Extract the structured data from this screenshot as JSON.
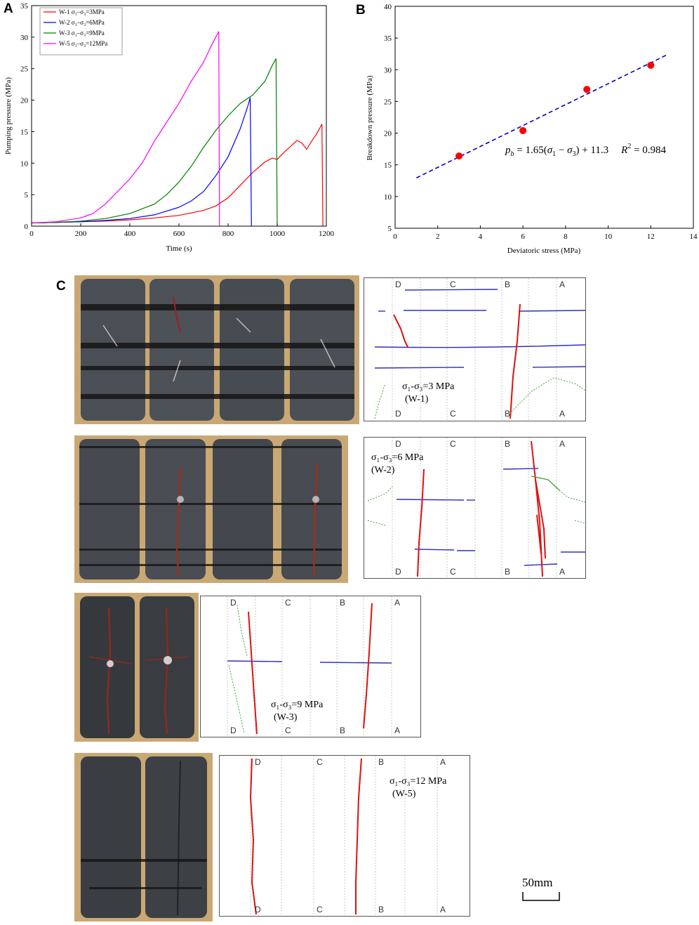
{
  "panels": {
    "a": "A",
    "b": "B",
    "c": "C"
  },
  "chart_data": [
    {
      "type": "line",
      "xlabel": "Time (s)",
      "ylabel": "Pumping pressure (MPa)",
      "xlim": [
        0,
        1200
      ],
      "ylim": [
        0,
        35
      ],
      "xticks": [
        "0",
        "200",
        "400",
        "600",
        "800",
        "1000",
        "1200"
      ],
      "yticks": [
        "0",
        "5",
        "10",
        "15",
        "20",
        "25",
        "30",
        "35"
      ],
      "legend_position": "top-left",
      "series": [
        {
          "name": "W-1  σ₁–σ₃=3MPa",
          "color": "#ff0000",
          "x": [
            0,
            100,
            200,
            300,
            400,
            500,
            600,
            700,
            750,
            800,
            850,
            900,
            950,
            980,
            1000,
            1030,
            1050,
            1080,
            1100,
            1120,
            1140,
            1160,
            1182,
            1186
          ],
          "y": [
            0.5,
            0.6,
            0.7,
            0.8,
            1.0,
            1.3,
            1.7,
            2.5,
            3.2,
            4.5,
            6.5,
            8.5,
            10.2,
            10.8,
            10.6,
            11.8,
            12.5,
            13.6,
            13.2,
            12.2,
            13.5,
            14.6,
            16.2,
            0
          ]
        },
        {
          "name": "W-2  σ₁–σ₃=6MPa",
          "color": "#0000ff",
          "x": [
            0,
            100,
            200,
            300,
            400,
            500,
            600,
            650,
            700,
            750,
            800,
            850,
            880,
            890,
            895
          ],
          "y": [
            0.5,
            0.6,
            0.7,
            0.9,
            1.2,
            1.8,
            3.0,
            4.0,
            5.5,
            8.0,
            11.0,
            15.5,
            19.0,
            20.4,
            0
          ]
        },
        {
          "name": "W-3  σ₁–σ₃=9MPa",
          "color": "#007f00",
          "x": [
            0,
            100,
            200,
            300,
            400,
            500,
            550,
            600,
            650,
            700,
            750,
            800,
            850,
            900,
            950,
            980,
            995,
            1000
          ],
          "y": [
            0.5,
            0.6,
            0.8,
            1.2,
            2.0,
            3.5,
            5.0,
            7.0,
            9.5,
            12.5,
            15.2,
            17.5,
            19.5,
            20.8,
            23.0,
            25.5,
            26.6,
            0
          ]
        },
        {
          "name": "W-5  σ₁–σ₃=12MPa",
          "color": "#ff00ff",
          "x": [
            0,
            100,
            200,
            250,
            300,
            350,
            400,
            450,
            500,
            550,
            600,
            650,
            700,
            730,
            762,
            765
          ],
          "y": [
            0.5,
            0.7,
            1.3,
            2.0,
            3.5,
            5.5,
            7.5,
            10.0,
            13.5,
            16.5,
            19.5,
            23.0,
            26.0,
            28.5,
            30.9,
            0
          ]
        }
      ]
    },
    {
      "type": "scatter",
      "xlabel": "Deviatoric stress (MPa)",
      "ylabel": "Breakdown pressure (MPa)",
      "xlim": [
        0,
        14
      ],
      "ylim": [
        5,
        40
      ],
      "xticks": [
        "0",
        "2",
        "4",
        "6",
        "8",
        "10",
        "12",
        "14"
      ],
      "yticks": [
        "5",
        "10",
        "15",
        "20",
        "25",
        "30",
        "35",
        "40"
      ],
      "points": {
        "x": [
          3,
          6,
          9,
          12
        ],
        "y": [
          16.4,
          20.4,
          26.9,
          30.7
        ],
        "color": "#ff0000"
      },
      "fit": {
        "slope": 1.65,
        "intercept": 11.3,
        "x_range": [
          1,
          12.8
        ],
        "color": "#0000cc"
      },
      "equation": {
        "lhs": "p",
        "lhs_sub": "b",
        "rhs_prefix": " = 1.65(",
        "s1": "σ",
        "s1_sub": "1",
        "minus": " − ",
        "s3": "σ",
        "s3_sub": "3",
        "rhs_suffix": ") + 11.3",
        "r2_label": "R",
        "r2_sup": "2",
        "r2_value": " = 0.984"
      }
    }
  ],
  "sketches": [
    {
      "top_letters": [
        "D",
        "C",
        "B",
        "A"
      ],
      "bottom_letters": [
        "D",
        "C",
        "B",
        "A"
      ],
      "label_line1": "σ₁-σ₃=3 MPa",
      "label_line2": "(W-1)"
    },
    {
      "top_letters": [
        "D",
        "C",
        "B",
        "A"
      ],
      "bottom_letters": [
        "D",
        "C",
        "B",
        "A"
      ],
      "label_line1": "σ₁-σ₃=6 MPa",
      "label_line2": "(W-2)"
    },
    {
      "top_letters": [
        "D",
        "C",
        "B",
        "A"
      ],
      "bottom_letters": [
        "D",
        "C",
        "B",
        "A"
      ],
      "label_line1": "σ₁-σ₃=9 MPa",
      "label_line2": "(W-3)"
    },
    {
      "top_letters": [
        "D",
        "C",
        "B",
        "A"
      ],
      "bottom_letters": [
        "D",
        "C",
        "B",
        "A"
      ],
      "label_line1": "σ₁-σ₃=12 MPa",
      "label_line2": "(W-5)"
    }
  ],
  "scale_bar": {
    "label": "50mm"
  },
  "colors": {
    "photo_bg": "#c9a873",
    "rock": "#4a4e55",
    "fracture": "#e01010",
    "bedding": "#3030c0",
    "natural": "#40a040"
  }
}
